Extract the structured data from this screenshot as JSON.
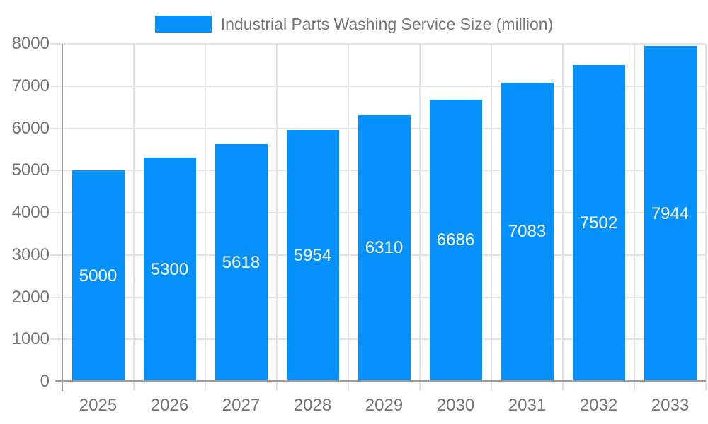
{
  "chart_data": {
    "type": "bar",
    "title": "Industrial Parts Washing Service Size (million)",
    "legend_position": "top",
    "categories": [
      "2025",
      "2026",
      "2027",
      "2028",
      "2029",
      "2030",
      "2031",
      "2032",
      "2033"
    ],
    "series": [
      {
        "name": "Industrial Parts Washing Service Size (million)",
        "values": [
          5000,
          5300,
          5618,
          5954,
          6310,
          6686,
          7083,
          7502,
          7944
        ]
      }
    ],
    "bar_value_labels": [
      "5000",
      "5300",
      "5618",
      "5954",
      "6310",
      "6686",
      "7083",
      "7502",
      "7944"
    ],
    "xlabel": "",
    "ylabel": "",
    "ylim": [
      0,
      8000
    ],
    "y_ticks": [
      0,
      1000,
      2000,
      3000,
      4000,
      5000,
      6000,
      7000,
      8000
    ],
    "grid": true,
    "colors": {
      "bar": "#0591f9",
      "bar_label": "#ffffff",
      "grid": "#e3e3e3",
      "axis": "#9b9b9b",
      "text": "#757575",
      "background": "#ffffff"
    }
  }
}
